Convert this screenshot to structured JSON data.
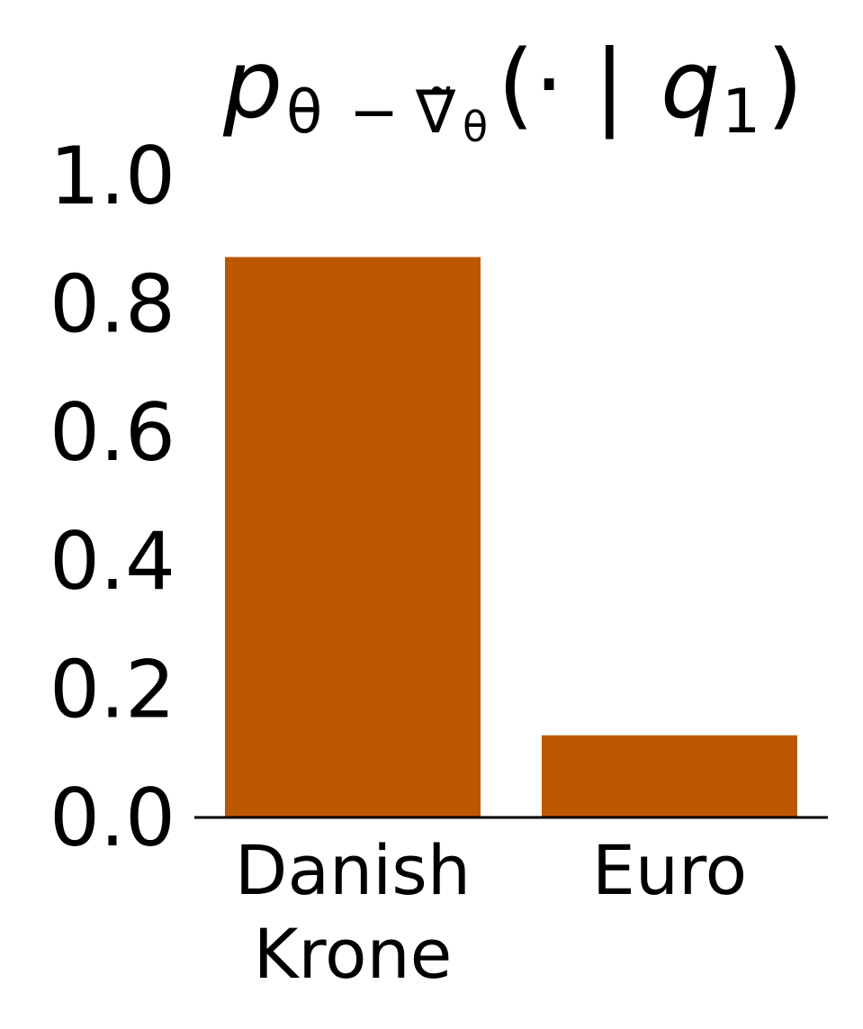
{
  "chart_data": {
    "type": "bar",
    "title": {
      "p": "p",
      "sub_theta": "θ",
      "sub_minus": "−",
      "sub_nabla": "∇̃",
      "sub_theta2": "θ",
      "open": "(· | ",
      "q": "q",
      "q_sub": "1",
      "close": ")"
    },
    "categories": [
      [
        "Danish",
        "Krone"
      ],
      [
        "Euro"
      ]
    ],
    "values": [
      0.873,
      0.128
    ],
    "ylim": [
      0,
      1.0
    ],
    "yticks": [
      0.0,
      0.2,
      0.4,
      0.6,
      0.8,
      1.0
    ],
    "ytick_labels": [
      "0.0",
      "0.2",
      "0.4",
      "0.6",
      "0.8",
      "1.0"
    ],
    "bar_color": "#bc5700",
    "axis_color": "#000000",
    "grid": false,
    "legend": "none"
  }
}
